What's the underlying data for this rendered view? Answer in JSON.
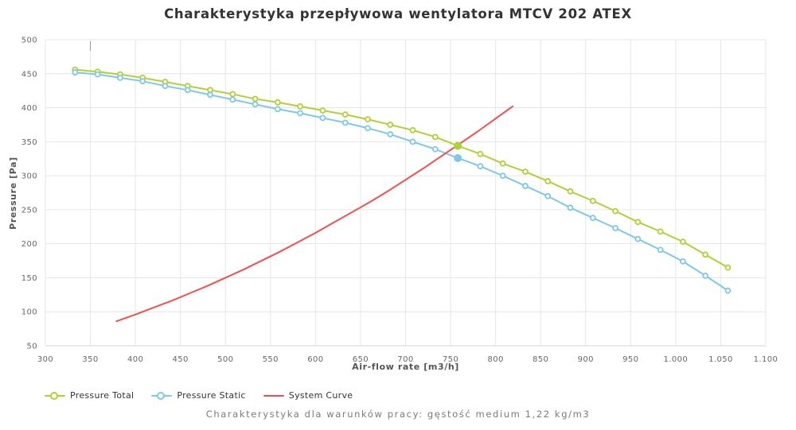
{
  "footer": {
    "text": "Charakterystyka dla warunków pracy: gęstość medium 1,22 kg/m3"
  },
  "chart_data": {
    "type": "line",
    "title": "Charakterystyka przepływowa wentylatora MTCV 202 ATEX",
    "xlabel": "Air-flow rate [m3/h]",
    "ylabel": "Pressure [Pa]",
    "xlim": [
      300,
      1100
    ],
    "ylim": [
      50,
      500
    ],
    "grid": true,
    "legend_position": "bottom-left",
    "x_ticks": [
      300,
      350,
      400,
      450,
      500,
      550,
      600,
      650,
      700,
      750,
      800,
      850,
      900,
      950,
      1000,
      1050,
      1100
    ],
    "x_tick_labels": [
      "300",
      "350",
      "400",
      "450",
      "500",
      "550",
      "600",
      "650",
      "700",
      "750",
      "800",
      "850",
      "900",
      "950",
      "1.000",
      "1.050",
      "1.100"
    ],
    "y_ticks": [
      50,
      100,
      150,
      200,
      250,
      300,
      350,
      400,
      450,
      500
    ],
    "colors": {
      "grid": "#e6e6e6",
      "axis_line": "#d6d6d6",
      "pressure_total": "#b0d136",
      "pressure_static": "#7ec8ea",
      "system_curve": "#f25050"
    },
    "series": [
      {
        "name": "Pressure Total",
        "color": "#b0d136",
        "marker": "circle-open",
        "points": [
          [
            333,
            456
          ],
          [
            358,
            453
          ],
          [
            383,
            449
          ],
          [
            408,
            444
          ],
          [
            433,
            438
          ],
          [
            458,
            432
          ],
          [
            483,
            426
          ],
          [
            508,
            420
          ],
          [
            533,
            413
          ],
          [
            558,
            408
          ],
          [
            583,
            402
          ],
          [
            608,
            396
          ],
          [
            633,
            390
          ],
          [
            658,
            383
          ],
          [
            683,
            375
          ],
          [
            708,
            367
          ],
          [
            733,
            357
          ],
          [
            758,
            344
          ],
          [
            783,
            332
          ],
          [
            808,
            318
          ],
          [
            833,
            306
          ],
          [
            858,
            292
          ],
          [
            883,
            277
          ],
          [
            908,
            263
          ],
          [
            933,
            248
          ],
          [
            958,
            232
          ],
          [
            983,
            218
          ],
          [
            1008,
            203
          ],
          [
            1033,
            184
          ],
          [
            1058,
            165
          ]
        ]
      },
      {
        "name": "Pressure Static",
        "color": "#7ec8ea",
        "marker": "circle-open",
        "points": [
          [
            333,
            452
          ],
          [
            358,
            449
          ],
          [
            383,
            444
          ],
          [
            408,
            439
          ],
          [
            433,
            432
          ],
          [
            458,
            426
          ],
          [
            483,
            419
          ],
          [
            508,
            412
          ],
          [
            533,
            405
          ],
          [
            558,
            398
          ],
          [
            583,
            392
          ],
          [
            608,
            385
          ],
          [
            633,
            378
          ],
          [
            658,
            370
          ],
          [
            683,
            361
          ],
          [
            708,
            350
          ],
          [
            733,
            339
          ],
          [
            758,
            326
          ],
          [
            783,
            314
          ],
          [
            808,
            300
          ],
          [
            833,
            285
          ],
          [
            858,
            270
          ],
          [
            883,
            253
          ],
          [
            908,
            238
          ],
          [
            933,
            223
          ],
          [
            958,
            207
          ],
          [
            983,
            191
          ],
          [
            1008,
            174
          ],
          [
            1033,
            153
          ],
          [
            1058,
            131
          ]
        ]
      },
      {
        "name": "System Curve",
        "color": "#f25050",
        "marker": "none",
        "points": [
          [
            379,
            86
          ],
          [
            400,
            96
          ],
          [
            420,
            106
          ],
          [
            440,
            116
          ],
          [
            460,
            127
          ],
          [
            480,
            138
          ],
          [
            500,
            150
          ],
          [
            520,
            162
          ],
          [
            540,
            175
          ],
          [
            560,
            188
          ],
          [
            580,
            202
          ],
          [
            600,
            216
          ],
          [
            620,
            231
          ],
          [
            640,
            246
          ],
          [
            660,
            261
          ],
          [
            680,
            277
          ],
          [
            700,
            294
          ],
          [
            720,
            311
          ],
          [
            740,
            329
          ],
          [
            760,
            347
          ],
          [
            780,
            365
          ],
          [
            800,
            384
          ],
          [
            819,
            402
          ]
        ]
      }
    ],
    "operating_points": [
      {
        "series": "Pressure Total",
        "x": 758,
        "y": 344,
        "color": "#b0d136"
      },
      {
        "series": "Pressure Static",
        "x": 758,
        "y": 326,
        "color": "#7ec8ea"
      }
    ]
  }
}
